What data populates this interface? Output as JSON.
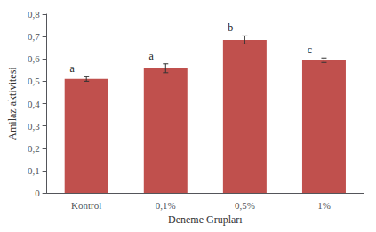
{
  "chart_data": {
    "type": "bar",
    "xlabel": "Deneme Grupları",
    "ylabel": "Amilaz aktivitesi",
    "categories": [
      "Kontrol",
      "0,1%",
      "0,5%",
      "1%"
    ],
    "values": [
      0.51,
      0.558,
      0.685,
      0.594
    ],
    "errors": [
      0.01,
      0.02,
      0.018,
      0.01
    ],
    "annotations": [
      "a",
      "a",
      "b",
      "c"
    ],
    "color": "#c0504d",
    "ylim": [
      0,
      0.8
    ],
    "yticks": [
      0,
      {
        "value": 0.1,
        "label": "0,1"
      },
      {
        "value": 0.2,
        "label": "0,2"
      },
      {
        "value": 0.3,
        "label": "0,3"
      },
      {
        "value": 0.4,
        "label": "0,4"
      },
      {
        "value": 0.5,
        "label": "0,5"
      },
      {
        "value": 0.6,
        "label": "0,6"
      },
      {
        "value": 0.7,
        "label": "0,7"
      },
      {
        "value": 0.8,
        "label": "0,8"
      }
    ],
    "grid": false
  }
}
